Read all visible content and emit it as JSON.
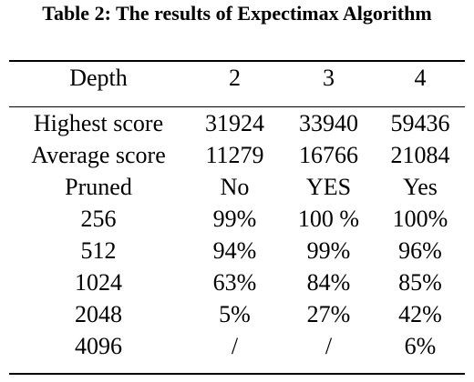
{
  "caption": "Table 2: The results of Expectimax Algorithm",
  "table": {
    "header": [
      "Depth",
      "2",
      "3",
      "4"
    ],
    "rows": [
      [
        "Highest score",
        "31924",
        "33940",
        "59436"
      ],
      [
        "Average score",
        "11279",
        "16766",
        "21084"
      ],
      [
        "Pruned",
        "No",
        "YES",
        "Yes"
      ],
      [
        "256",
        "99%",
        "100 %",
        "100%"
      ],
      [
        "512",
        "94%",
        "99%",
        "96%"
      ],
      [
        "1024",
        "63%",
        "84%",
        "85%"
      ],
      [
        "2048",
        "5%",
        "27%",
        "42%"
      ],
      [
        "4096",
        "/",
        "/",
        "6%"
      ]
    ]
  }
}
